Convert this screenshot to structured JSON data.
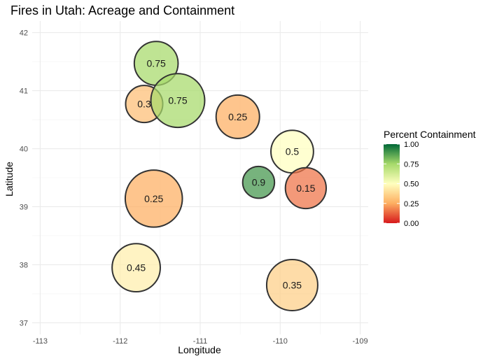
{
  "chart_data": {
    "type": "scatter",
    "title": "Fires in Utah: Acreage and Containment",
    "xlabel": "Longitude",
    "ylabel": "Latitude",
    "xlim": [
      -113.1,
      -108.9
    ],
    "ylim": [
      36.8,
      42.2
    ],
    "x_ticks": [
      -113,
      -112,
      -111,
      -110,
      -109
    ],
    "y_ticks": [
      37,
      38,
      39,
      40,
      41,
      42
    ],
    "grid": true,
    "legend": {
      "title": "Percent Containment",
      "placement": "right",
      "ticks": [
        "1.00",
        "0.75",
        "0.50",
        "0.25",
        "0.00"
      ],
      "colors": [
        "#006837",
        "#a6d96a",
        "#ffffbf",
        "#fdae61",
        "#d7191c"
      ]
    },
    "points": [
      {
        "x": -111.55,
        "y": 41.47,
        "value": 0.75,
        "label": "0.75",
        "size": 0.53
      },
      {
        "x": -111.7,
        "y": 40.77,
        "value": 0.3,
        "label": "0.3",
        "size": 0.38
      },
      {
        "x": -111.28,
        "y": 40.83,
        "value": 0.75,
        "label": "0.75",
        "size": 0.8
      },
      {
        "x": -110.53,
        "y": 40.55,
        "value": 0.25,
        "label": "0.25",
        "size": 0.52
      },
      {
        "x": -109.85,
        "y": 39.95,
        "value": 0.5,
        "label": "0.5",
        "size": 0.5
      },
      {
        "x": -110.27,
        "y": 39.42,
        "value": 0.9,
        "label": "0.9",
        "size": 0.28
      },
      {
        "x": -109.68,
        "y": 39.32,
        "value": 0.15,
        "label": "0.15",
        "size": 0.46
      },
      {
        "x": -111.58,
        "y": 39.14,
        "value": 0.25,
        "label": "0.25",
        "size": 0.9
      },
      {
        "x": -111.8,
        "y": 37.95,
        "value": 0.45,
        "label": "0.45",
        "size": 0.64
      },
      {
        "x": -109.85,
        "y": 37.65,
        "value": 0.35,
        "label": "0.35",
        "size": 0.72
      }
    ]
  }
}
